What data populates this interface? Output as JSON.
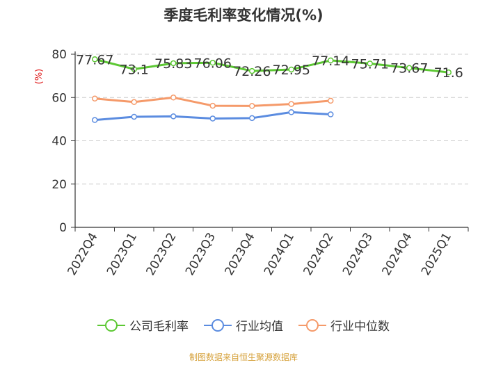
{
  "chart_data": {
    "type": "line",
    "title": "季度毛利率变化情况(%)",
    "ylabel": "(%)",
    "xlabel": "",
    "categories": [
      "2022Q4",
      "2023Q1",
      "2023Q2",
      "2023Q3",
      "2023Q4",
      "2024Q1",
      "2024Q2",
      "2024Q3",
      "2024Q4",
      "2025Q1"
    ],
    "ylim": [
      0,
      80
    ],
    "yticks": [
      0,
      20,
      40,
      60,
      80
    ],
    "grid": true,
    "legend_position": "bottom",
    "series": [
      {
        "name": "公司毛利率",
        "color": "#5cc833",
        "values": [
          77.67,
          73.1,
          75.83,
          76.06,
          72.26,
          72.95,
          77.14,
          75.71,
          73.67,
          71.6
        ],
        "labels": [
          "77.67",
          "73.1",
          "75.83",
          "76.06",
          "72.26",
          "72.95",
          "77.14",
          "75.71",
          "73.67",
          "71.6"
        ]
      },
      {
        "name": "行业均值",
        "color": "#5b8ce0",
        "values": [
          49.6,
          51.1,
          51.3,
          50.3,
          50.5,
          53.2,
          52.2,
          null,
          null,
          null
        ]
      },
      {
        "name": "行业中位数",
        "color": "#f59a6a",
        "values": [
          59.5,
          57.9,
          60.0,
          56.2,
          56.1,
          57.0,
          58.5,
          null,
          null,
          null
        ]
      }
    ]
  },
  "footer": {
    "source": "制图数据来自恒生聚源数据库"
  }
}
